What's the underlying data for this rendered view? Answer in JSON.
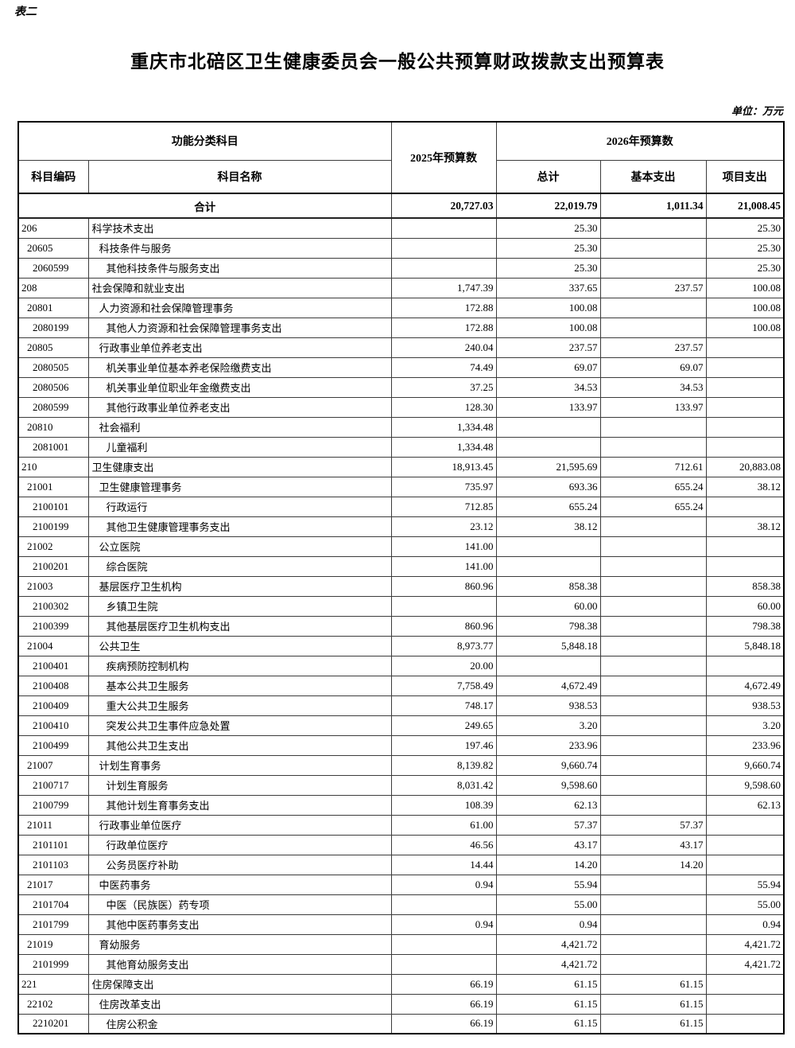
{
  "page": {
    "table_label": "表二",
    "title": "重庆市北碚区卫生健康委员会一般公共预算财政拨款支出预算表",
    "unit_note": "单位：万元"
  },
  "table": {
    "headers": {
      "function_group": "功能分类科目",
      "code": "科目编码",
      "name": "科目名称",
      "y2025": "2025年预算数",
      "y2026": "2026年预算数",
      "total": "总计",
      "basic": "基本支出",
      "project": "项目支出"
    },
    "total_row": {
      "label": "合计",
      "y2025": "20,727.03",
      "total": "22,019.79",
      "basic": "1,011.34",
      "project": "21,008.45"
    },
    "rows": [
      {
        "code": "206",
        "name": "科学技术支出",
        "level": 0,
        "y2025": "",
        "total": "25.30",
        "basic": "",
        "project": "25.30"
      },
      {
        "code": "20605",
        "name": "科技条件与服务",
        "level": 1,
        "y2025": "",
        "total": "25.30",
        "basic": "",
        "project": "25.30"
      },
      {
        "code": "2060599",
        "name": "其他科技条件与服务支出",
        "level": 2,
        "y2025": "",
        "total": "25.30",
        "basic": "",
        "project": "25.30"
      },
      {
        "code": "208",
        "name": "社会保障和就业支出",
        "level": 0,
        "y2025": "1,747.39",
        "total": "337.65",
        "basic": "237.57",
        "project": "100.08"
      },
      {
        "code": "20801",
        "name": "人力资源和社会保障管理事务",
        "level": 1,
        "y2025": "172.88",
        "total": "100.08",
        "basic": "",
        "project": "100.08"
      },
      {
        "code": "2080199",
        "name": "其他人力资源和社会保障管理事务支出",
        "level": 2,
        "y2025": "172.88",
        "total": "100.08",
        "basic": "",
        "project": "100.08"
      },
      {
        "code": "20805",
        "name": "行政事业单位养老支出",
        "level": 1,
        "y2025": "240.04",
        "total": "237.57",
        "basic": "237.57",
        "project": ""
      },
      {
        "code": "2080505",
        "name": "机关事业单位基本养老保险缴费支出",
        "level": 2,
        "y2025": "74.49",
        "total": "69.07",
        "basic": "69.07",
        "project": ""
      },
      {
        "code": "2080506",
        "name": "机关事业单位职业年金缴费支出",
        "level": 2,
        "y2025": "37.25",
        "total": "34.53",
        "basic": "34.53",
        "project": ""
      },
      {
        "code": "2080599",
        "name": "其他行政事业单位养老支出",
        "level": 2,
        "y2025": "128.30",
        "total": "133.97",
        "basic": "133.97",
        "project": ""
      },
      {
        "code": "20810",
        "name": "社会福利",
        "level": 1,
        "y2025": "1,334.48",
        "total": "",
        "basic": "",
        "project": ""
      },
      {
        "code": "2081001",
        "name": "儿童福利",
        "level": 2,
        "y2025": "1,334.48",
        "total": "",
        "basic": "",
        "project": ""
      },
      {
        "code": "210",
        "name": "卫生健康支出",
        "level": 0,
        "y2025": "18,913.45",
        "total": "21,595.69",
        "basic": "712.61",
        "project": "20,883.08"
      },
      {
        "code": "21001",
        "name": "卫生健康管理事务",
        "level": 1,
        "y2025": "735.97",
        "total": "693.36",
        "basic": "655.24",
        "project": "38.12"
      },
      {
        "code": "2100101",
        "name": "行政运行",
        "level": 2,
        "y2025": "712.85",
        "total": "655.24",
        "basic": "655.24",
        "project": ""
      },
      {
        "code": "2100199",
        "name": "其他卫生健康管理事务支出",
        "level": 2,
        "y2025": "23.12",
        "total": "38.12",
        "basic": "",
        "project": "38.12"
      },
      {
        "code": "21002",
        "name": "公立医院",
        "level": 1,
        "y2025": "141.00",
        "total": "",
        "basic": "",
        "project": ""
      },
      {
        "code": "2100201",
        "name": "综合医院",
        "level": 2,
        "y2025": "141.00",
        "total": "",
        "basic": "",
        "project": ""
      },
      {
        "code": "21003",
        "name": "基层医疗卫生机构",
        "level": 1,
        "y2025": "860.96",
        "total": "858.38",
        "basic": "",
        "project": "858.38"
      },
      {
        "code": "2100302",
        "name": "乡镇卫生院",
        "level": 2,
        "y2025": "",
        "total": "60.00",
        "basic": "",
        "project": "60.00"
      },
      {
        "code": "2100399",
        "name": "其他基层医疗卫生机构支出",
        "level": 2,
        "y2025": "860.96",
        "total": "798.38",
        "basic": "",
        "project": "798.38"
      },
      {
        "code": "21004",
        "name": "公共卫生",
        "level": 1,
        "y2025": "8,973.77",
        "total": "5,848.18",
        "basic": "",
        "project": "5,848.18"
      },
      {
        "code": "2100401",
        "name": "疾病预防控制机构",
        "level": 2,
        "y2025": "20.00",
        "total": "",
        "basic": "",
        "project": ""
      },
      {
        "code": "2100408",
        "name": "基本公共卫生服务",
        "level": 2,
        "y2025": "7,758.49",
        "total": "4,672.49",
        "basic": "",
        "project": "4,672.49"
      },
      {
        "code": "2100409",
        "name": "重大公共卫生服务",
        "level": 2,
        "y2025": "748.17",
        "total": "938.53",
        "basic": "",
        "project": "938.53"
      },
      {
        "code": "2100410",
        "name": "突发公共卫生事件应急处置",
        "level": 2,
        "y2025": "249.65",
        "total": "3.20",
        "basic": "",
        "project": "3.20"
      },
      {
        "code": "2100499",
        "name": "其他公共卫生支出",
        "level": 2,
        "y2025": "197.46",
        "total": "233.96",
        "basic": "",
        "project": "233.96"
      },
      {
        "code": "21007",
        "name": "计划生育事务",
        "level": 1,
        "y2025": "8,139.82",
        "total": "9,660.74",
        "basic": "",
        "project": "9,660.74"
      },
      {
        "code": "2100717",
        "name": "计划生育服务",
        "level": 2,
        "y2025": "8,031.42",
        "total": "9,598.60",
        "basic": "",
        "project": "9,598.60"
      },
      {
        "code": "2100799",
        "name": "其他计划生育事务支出",
        "level": 2,
        "y2025": "108.39",
        "total": "62.13",
        "basic": "",
        "project": "62.13"
      },
      {
        "code": "21011",
        "name": "行政事业单位医疗",
        "level": 1,
        "y2025": "61.00",
        "total": "57.37",
        "basic": "57.37",
        "project": ""
      },
      {
        "code": "2101101",
        "name": "行政单位医疗",
        "level": 2,
        "y2025": "46.56",
        "total": "43.17",
        "basic": "43.17",
        "project": ""
      },
      {
        "code": "2101103",
        "name": "公务员医疗补助",
        "level": 2,
        "y2025": "14.44",
        "total": "14.20",
        "basic": "14.20",
        "project": ""
      },
      {
        "code": "21017",
        "name": "中医药事务",
        "level": 1,
        "y2025": "0.94",
        "total": "55.94",
        "basic": "",
        "project": "55.94"
      },
      {
        "code": "2101704",
        "name": "中医（民族医）药专项",
        "level": 2,
        "y2025": "",
        "total": "55.00",
        "basic": "",
        "project": "55.00"
      },
      {
        "code": "2101799",
        "name": "其他中医药事务支出",
        "level": 2,
        "y2025": "0.94",
        "total": "0.94",
        "basic": "",
        "project": "0.94"
      },
      {
        "code": "21019",
        "name": "育幼服务",
        "level": 1,
        "y2025": "",
        "total": "4,421.72",
        "basic": "",
        "project": "4,421.72"
      },
      {
        "code": "2101999",
        "name": "其他育幼服务支出",
        "level": 2,
        "y2025": "",
        "total": "4,421.72",
        "basic": "",
        "project": "4,421.72"
      },
      {
        "code": "221",
        "name": "住房保障支出",
        "level": 0,
        "y2025": "66.19",
        "total": "61.15",
        "basic": "61.15",
        "project": ""
      },
      {
        "code": "22102",
        "name": "住房改革支出",
        "level": 1,
        "y2025": "66.19",
        "total": "61.15",
        "basic": "61.15",
        "project": ""
      },
      {
        "code": "2210201",
        "name": "住房公积金",
        "level": 2,
        "y2025": "66.19",
        "total": "61.15",
        "basic": "61.15",
        "project": ""
      }
    ]
  }
}
